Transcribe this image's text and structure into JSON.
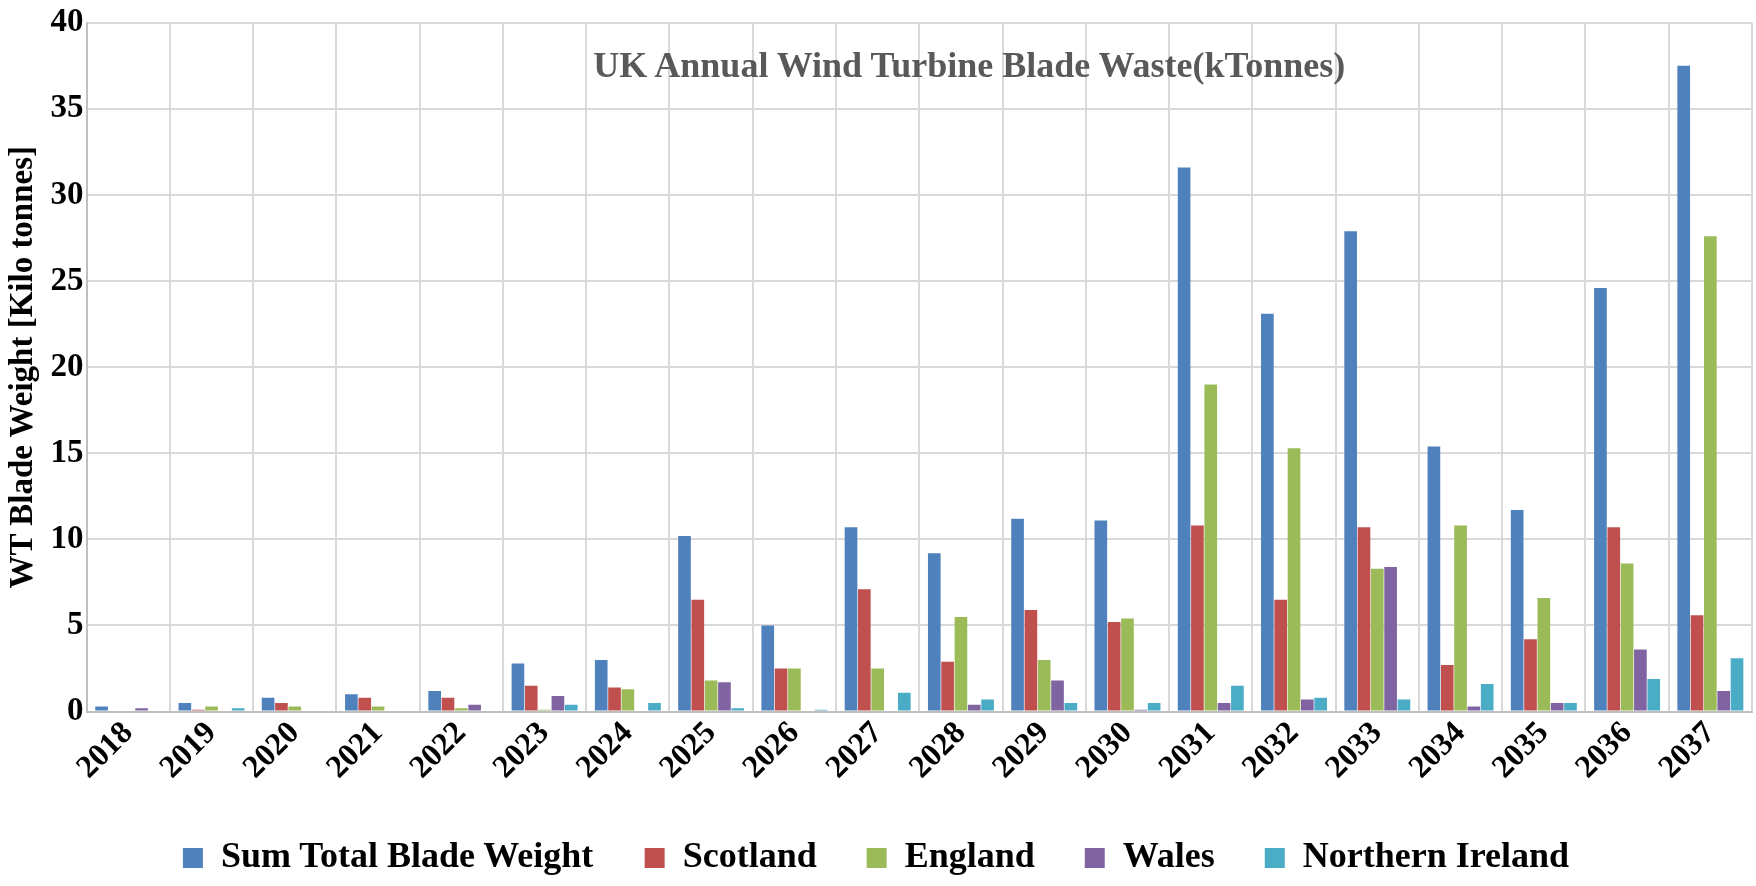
{
  "chart_data": {
    "type": "bar",
    "title": "UK Annual Wind Turbine Blade Waste(kTonnes)",
    "ylabel": "WT Blade Weight [Kilo tonnes]",
    "categories": [
      "2018",
      "2019",
      "2020",
      "2021",
      "2022",
      "2023",
      "2024",
      "2025",
      "2026",
      "2027",
      "2028",
      "2029",
      "2030",
      "2031",
      "2032",
      "2033",
      "2034",
      "2035",
      "2036",
      "2037"
    ],
    "series": [
      {
        "name": "Sum Total Blade Weight",
        "color": "#4f81bd",
        "values": [
          0.3,
          0.5,
          0.8,
          1.0,
          1.2,
          2.8,
          3.0,
          10.2,
          5.0,
          10.7,
          9.2,
          11.2,
          11.1,
          31.6,
          23.1,
          27.9,
          15.4,
          11.7,
          24.6,
          37.5
        ]
      },
      {
        "name": "Scotland",
        "color": "#c0504d",
        "values": [
          0,
          0.1,
          0.5,
          0.8,
          0.8,
          1.5,
          1.4,
          6.5,
          2.5,
          7.1,
          2.9,
          5.9,
          5.2,
          10.8,
          6.5,
          10.7,
          2.7,
          4.2,
          10.7,
          5.6
        ]
      },
      {
        "name": "England",
        "color": "#9bbb59",
        "values": [
          0,
          0.3,
          0.3,
          0.3,
          0.2,
          0.1,
          1.3,
          1.8,
          2.5,
          2.5,
          5.5,
          3.0,
          5.4,
          19.0,
          15.3,
          8.3,
          10.8,
          6.6,
          8.6,
          27.6
        ]
      },
      {
        "name": "Wales",
        "color": "#8064a2",
        "values": [
          0.2,
          0,
          0,
          0,
          0.4,
          0.9,
          0,
          1.7,
          0,
          0,
          0.4,
          1.8,
          0.1,
          0.5,
          0.7,
          8.4,
          0.3,
          0.5,
          3.6,
          1.2
        ]
      },
      {
        "name": "Northern Ireland",
        "color": "#4bacc6",
        "values": [
          0,
          0.2,
          0,
          0,
          0,
          0.4,
          0.5,
          0.2,
          0.1,
          1.1,
          0.7,
          0.5,
          0.5,
          1.5,
          0.8,
          0.7,
          1.6,
          0.5,
          1.9,
          3.1
        ]
      }
    ],
    "ylim": [
      0,
      40
    ],
    "yticks": [
      0,
      5,
      10,
      15,
      20,
      25,
      30,
      35,
      40
    ],
    "grid": true,
    "legend": "bottom"
  }
}
